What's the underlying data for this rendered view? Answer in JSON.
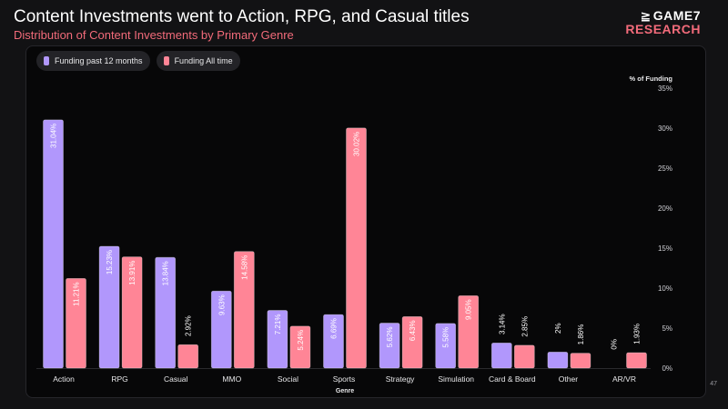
{
  "header": {
    "title": "Content Investments went to Action, RPG, and Casual titles",
    "subtitle": "Distribution of Content Investments by Primary Genre",
    "logo_line1": "GAME7",
    "logo_line2": "RESEARCH"
  },
  "legend": {
    "items": [
      {
        "label": "Funding past 12 months",
        "color": "#b197fc"
      },
      {
        "label": "Funding All time",
        "color": "#ff8596"
      }
    ]
  },
  "page_number": "47",
  "chart_data": {
    "type": "bar",
    "title": "",
    "xlabel": "Genre",
    "ylabel": "% of Funding",
    "ylim": [
      0,
      35
    ],
    "yticks": [
      "0%",
      "5%",
      "10%",
      "15%",
      "20%",
      "25%",
      "30%",
      "35%"
    ],
    "categories": [
      "Action",
      "RPG",
      "Casual",
      "MMO",
      "Social",
      "Sports",
      "Strategy",
      "Simulation",
      "Card & Board",
      "Other",
      "AR/VR"
    ],
    "series": [
      {
        "name": "Funding past 12 months",
        "color": "#b197fc",
        "values": [
          31.04,
          15.23,
          13.84,
          9.63,
          7.21,
          6.69,
          5.62,
          5.58,
          3.14,
          2,
          0
        ],
        "labels": [
          "31.04%",
          "15.23%",
          "13.84%",
          "9.63%",
          "7.21%",
          "6.69%",
          "5.62%",
          "5.58%",
          "3.14%",
          "2%",
          "0%"
        ]
      },
      {
        "name": "Funding All time",
        "color": "#ff8596",
        "values": [
          11.21,
          13.91,
          2.92,
          14.58,
          5.24,
          30.02,
          6.43,
          9.05,
          2.85,
          1.86,
          1.93
        ],
        "labels": [
          "11.21%",
          "13.91%",
          "2.92%",
          "14.58%",
          "5.24%",
          "30.02%",
          "6.43%",
          "9.05%",
          "2.85%",
          "1.86%",
          "1.93%"
        ]
      }
    ],
    "legend_position": "top-left",
    "grid": false
  }
}
